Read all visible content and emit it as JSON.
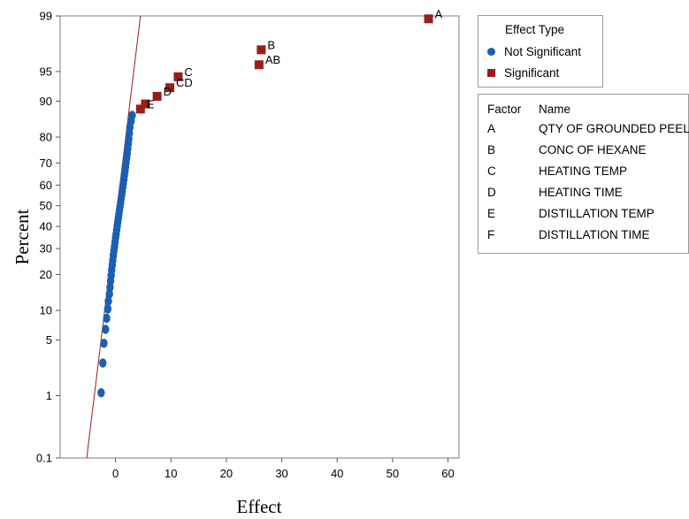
{
  "chart_data": {
    "type": "scatter",
    "title": "",
    "xlabel": "Effect",
    "ylabel": "Percent",
    "xlim": [
      -10,
      62
    ],
    "ylim": [
      0.1,
      99
    ],
    "y_scale": "normal-probability",
    "x_ticks": [
      0,
      10,
      20,
      30,
      40,
      50,
      60
    ],
    "y_ticks": [
      0.1,
      1,
      5,
      10,
      20,
      30,
      40,
      50,
      60,
      70,
      80,
      90,
      95,
      99
    ],
    "reference_line": {
      "from": {
        "x": -5.2,
        "y": 0.1
      },
      "to": {
        "x": 4.5,
        "y": 99
      },
      "color": "#9b1c1c"
    },
    "series": [
      {
        "name": "Not Significant",
        "marker": "circle",
        "color": "#1a5fb4",
        "points": [
          {
            "x": -2.6,
            "y": 1.1
          },
          {
            "x": -2.3,
            "y": 2.7
          },
          {
            "x": -2.1,
            "y": 4.6
          },
          {
            "x": -1.8,
            "y": 6.5
          },
          {
            "x": -1.6,
            "y": 8.4
          },
          {
            "x": -1.4,
            "y": 10.3
          },
          {
            "x": -1.3,
            "y": 12.1
          },
          {
            "x": -1.1,
            "y": 14.0
          },
          {
            "x": -1.0,
            "y": 15.9
          },
          {
            "x": -0.9,
            "y": 17.8
          },
          {
            "x": -0.8,
            "y": 19.6
          },
          {
            "x": -0.7,
            "y": 21.5
          },
          {
            "x": -0.6,
            "y": 23.4
          },
          {
            "x": -0.5,
            "y": 25.2
          },
          {
            "x": -0.4,
            "y": 27.1
          },
          {
            "x": -0.3,
            "y": 29.0
          },
          {
            "x": -0.2,
            "y": 30.8
          },
          {
            "x": -0.1,
            "y": 32.7
          },
          {
            "x": 0.0,
            "y": 34.6
          },
          {
            "x": 0.1,
            "y": 36.4
          },
          {
            "x": 0.2,
            "y": 38.3
          },
          {
            "x": 0.3,
            "y": 40.2
          },
          {
            "x": 0.4,
            "y": 42.1
          },
          {
            "x": 0.5,
            "y": 43.9
          },
          {
            "x": 0.6,
            "y": 45.8
          },
          {
            "x": 0.7,
            "y": 47.7
          },
          {
            "x": 0.8,
            "y": 49.5
          },
          {
            "x": 0.9,
            "y": 51.4
          },
          {
            "x": 1.0,
            "y": 53.3
          },
          {
            "x": 1.1,
            "y": 55.1
          },
          {
            "x": 1.2,
            "y": 57.0
          },
          {
            "x": 1.3,
            "y": 58.9
          },
          {
            "x": 1.4,
            "y": 60.7
          },
          {
            "x": 1.5,
            "y": 62.6
          },
          {
            "x": 1.6,
            "y": 64.5
          },
          {
            "x": 1.7,
            "y": 66.4
          },
          {
            "x": 1.8,
            "y": 68.2
          },
          {
            "x": 1.9,
            "y": 70.1
          },
          {
            "x": 2.0,
            "y": 72.0
          },
          {
            "x": 2.1,
            "y": 73.8
          },
          {
            "x": 2.2,
            "y": 75.7
          },
          {
            "x": 2.3,
            "y": 77.6
          },
          {
            "x": 2.4,
            "y": 79.4
          },
          {
            "x": 2.5,
            "y": 81.3
          },
          {
            "x": 2.6,
            "y": 83.2
          },
          {
            "x": 2.8,
            "y": 85.0
          },
          {
            "x": 3.0,
            "y": 86.6
          }
        ]
      },
      {
        "name": "Significant",
        "marker": "square",
        "color": "#9b1c1c",
        "points": [
          {
            "x": 4.5,
            "y": 88.2,
            "label": "E"
          },
          {
            "x": 5.4,
            "y": 89.4,
            "label": ""
          },
          {
            "x": 7.5,
            "y": 91.0,
            "label": "D"
          },
          {
            "x": 9.8,
            "y": 92.6,
            "label": ""
          },
          {
            "x": 11.3,
            "y": 94.3,
            "label": "C"
          },
          {
            "x": 9.8,
            "y": 92.6,
            "label": "CD",
            "label_only": true
          },
          {
            "x": 25.9,
            "y": 95.8,
            "label": "AB"
          },
          {
            "x": 26.3,
            "y": 97.2,
            "label": "B"
          },
          {
            "x": 56.5,
            "y": 98.9,
            "label": "A"
          }
        ]
      }
    ]
  },
  "effect_legend": {
    "title": "Effect Type",
    "items": [
      {
        "label": "Not Significant",
        "marker": "circle",
        "color": "#1a5fb4"
      },
      {
        "label": "Significant",
        "marker": "square",
        "color": "#9b1c1c"
      }
    ]
  },
  "factor_legend": {
    "header": {
      "factor": "Factor",
      "name": "Name"
    },
    "rows": [
      {
        "factor": "A",
        "name": "QTY OF GROUNDED PEEL"
      },
      {
        "factor": "B",
        "name": "CONC OF HEXANE"
      },
      {
        "factor": "C",
        "name": "HEATING TEMP"
      },
      {
        "factor": "D",
        "name": "HEATING TIME"
      },
      {
        "factor": "E",
        "name": "DISTILLATION TEMP"
      },
      {
        "factor": "F",
        "name": "DISTILLATION TIME"
      }
    ]
  }
}
